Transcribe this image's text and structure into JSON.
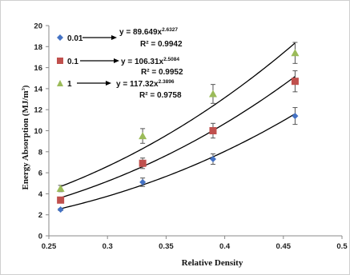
{
  "chart_data": {
    "type": "scatter",
    "xlabel": "Relative Density",
    "ylabel": "Energy Absorption (MJ/m",
    "ylabel_sup": "3",
    "ylabel_close": ")",
    "xlim": [
      0.25,
      0.5
    ],
    "ylim": [
      0,
      20
    ],
    "x_ticks": [
      "0.25",
      "0.3",
      "0.35",
      "0.4",
      "0.45",
      "0.5"
    ],
    "y_ticks": [
      "0",
      "2",
      "4",
      "6",
      "8",
      "10",
      "12",
      "14",
      "16",
      "18",
      "20"
    ],
    "grid": false,
    "legend_position": "top-left",
    "series": [
      {
        "name": "0.01",
        "marker": "diamond",
        "color": "#4472c4",
        "x": [
          0.26,
          0.33,
          0.39,
          0.46
        ],
        "y": [
          2.5,
          5.1,
          7.3,
          11.4
        ],
        "err": [
          0.1,
          0.4,
          0.5,
          0.8
        ],
        "fit": {
          "a": 89.649,
          "b": 2.6327
        },
        "equation_prefix": "y = 89.649x",
        "equation_exp": "2.6327",
        "r2": "R² = 0.9942"
      },
      {
        "name": "0.1",
        "marker": "square",
        "color": "#c0504d",
        "x": [
          0.26,
          0.33,
          0.39,
          0.46
        ],
        "y": [
          3.4,
          6.9,
          10.0,
          14.7
        ],
        "err": [
          0.2,
          0.5,
          0.7,
          1.0
        ],
        "fit": {
          "a": 106.31,
          "b": 2.5084
        },
        "equation_prefix": "y = 106.31x",
        "equation_exp": "2.5084",
        "r2": "R² = 0.9952"
      },
      {
        "name": "1",
        "marker": "triangle",
        "color": "#9bbb59",
        "x": [
          0.26,
          0.33,
          0.39,
          0.46
        ],
        "y": [
          4.5,
          9.5,
          13.5,
          17.4
        ],
        "err": [
          0.3,
          0.7,
          0.9,
          1.0
        ],
        "fit": {
          "a": 117.32,
          "b": 2.3896
        },
        "equation_prefix": "y = 117.32x",
        "equation_exp": "2.3896",
        "r2": "R² = 0.9758"
      }
    ]
  }
}
